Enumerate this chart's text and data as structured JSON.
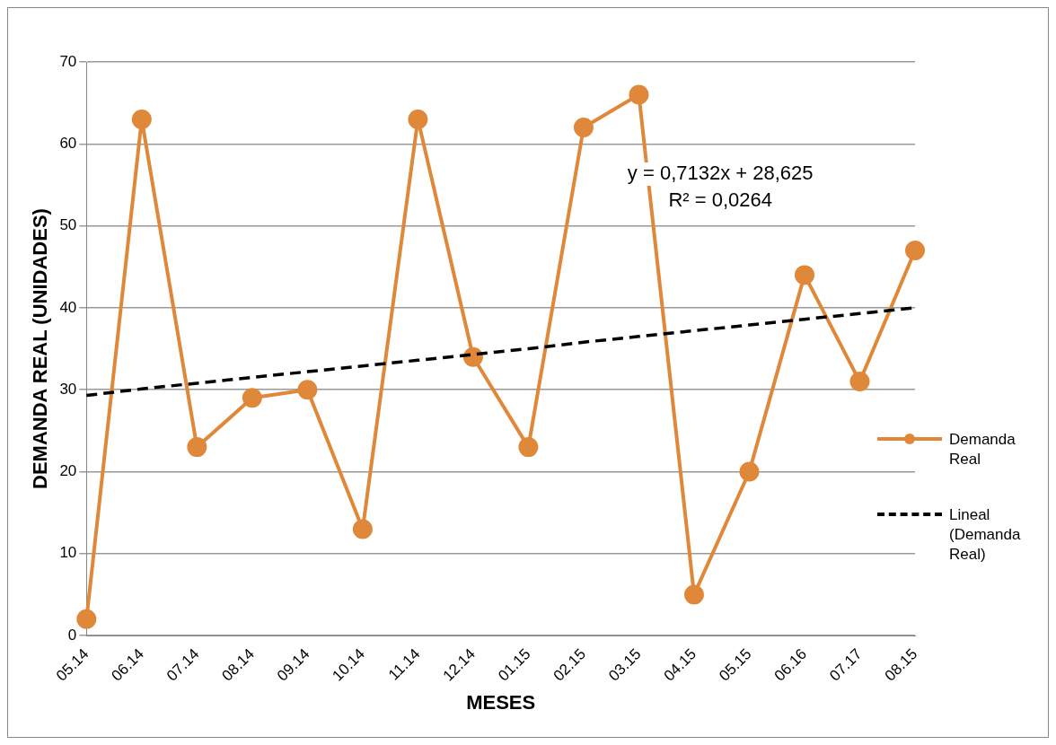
{
  "chart_data": {
    "type": "line",
    "xlabel": "MESES",
    "ylabel": "DEMANDA REAL (UNIDADES)",
    "categories": [
      "05.14",
      "06.14",
      "07.14",
      "08.14",
      "09.14",
      "10.14",
      "11.14",
      "12.14",
      "01.15",
      "02.15",
      "03.15",
      "04.15",
      "05.15",
      "06.16",
      "07.17",
      "08.15"
    ],
    "series": [
      {
        "name": "Demanda Real",
        "color": "#e0883a",
        "marker": "circle",
        "line_style": "solid",
        "values": [
          2,
          63,
          23,
          29,
          30,
          13,
          63,
          34,
          23,
          62,
          66,
          5,
          20,
          44,
          31,
          47
        ]
      },
      {
        "name": "Lineal (Demanda Real)",
        "color": "#000000",
        "marker": "none",
        "line_style": "dashed",
        "values": [
          29.3,
          30.1,
          30.8,
          31.5,
          32.2,
          32.9,
          33.6,
          34.3,
          35.0,
          35.8,
          36.5,
          37.2,
          37.9,
          38.6,
          39.3,
          40.0
        ]
      }
    ],
    "ylim": [
      0,
      70
    ],
    "yticks": [
      0,
      10,
      20,
      30,
      40,
      50,
      60,
      70
    ],
    "grid": "y",
    "legend": "right",
    "annotations": [
      "y = 0,7132x + 28,625",
      "R² = 0,0264"
    ]
  }
}
